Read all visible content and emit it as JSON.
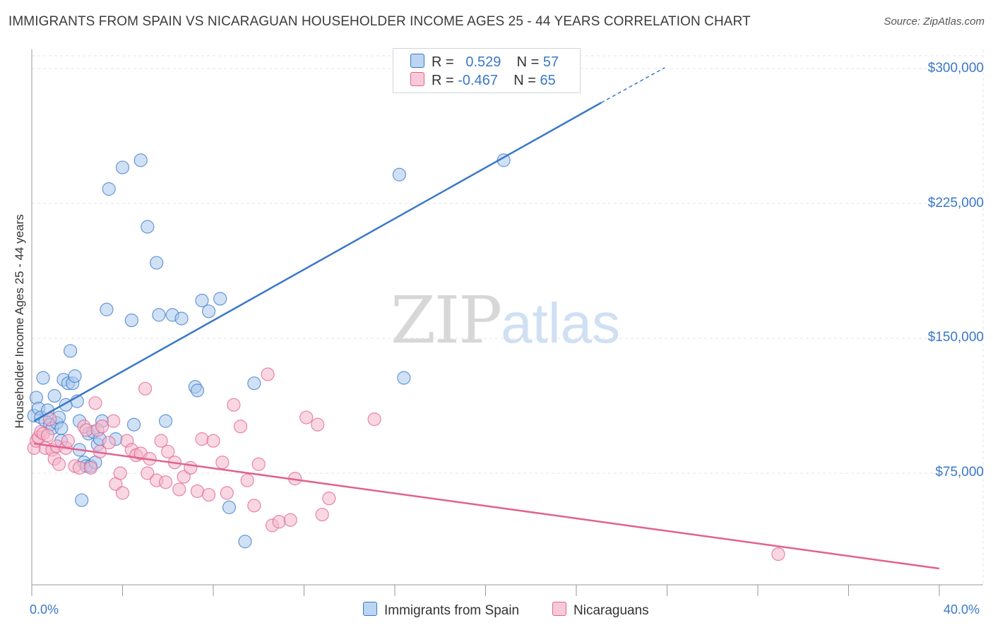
{
  "title": "IMMIGRANTS FROM SPAIN VS NICARAGUAN HOUSEHOLDER INCOME AGES 25 - 44 YEARS CORRELATION CHART",
  "source": "Source: ZipAtlas.com",
  "watermark": {
    "zip": "ZIP",
    "atlas": "atlas"
  },
  "legend": {
    "blue": {
      "r_label": "R =",
      "r_value": "0.529",
      "n_label": "N =",
      "n_value": "57"
    },
    "pink": {
      "r_label": "R =",
      "r_value": "-0.467",
      "n_label": "N =",
      "n_value": "65"
    }
  },
  "colors": {
    "blue": "#3a78c8",
    "blue_fill": "#a9c8ef",
    "pink": "#e0628f",
    "pink_fill": "#f4b6cb",
    "grid": "#dfe3e8"
  },
  "chart_data": {
    "type": "scatter",
    "title": "IMMIGRANTS FROM SPAIN VS NICARAGUAN HOUSEHOLDER INCOME AGES 25 - 44 YEARS CORRELATION CHART",
    "xlabel": "",
    "ylabel": "Householder Income Ages 25 - 44 years",
    "xlim": [
      0,
      40
    ],
    "ylim": [
      10000,
      310000
    ],
    "x_tick_labels": [
      "0.0%",
      "40.0%"
    ],
    "y_ticks": [
      75000,
      150000,
      225000,
      300000
    ],
    "y_tick_labels": [
      "$75,000",
      "$150,000",
      "$225,000",
      "$300,000"
    ],
    "grid": true,
    "legend_position": "top-center",
    "series": [
      {
        "name": "Immigrants from Spain",
        "color": "#3a78c8",
        "trend": {
          "x0": 0.1,
          "y0": 104000,
          "x1": 25.1,
          "y1": 281000,
          "dash_to_x": 27.9,
          "dash_to_y": 300500
        },
        "points": [
          [
            0.1,
            107000
          ],
          [
            0.2,
            117000
          ],
          [
            0.3,
            111000
          ],
          [
            0.4,
            106000
          ],
          [
            0.5,
            128000
          ],
          [
            0.6,
            104000
          ],
          [
            0.7,
            110000
          ],
          [
            0.8,
            102000
          ],
          [
            0.9,
            100000
          ],
          [
            1.0,
            118000
          ],
          [
            1.1,
            103000
          ],
          [
            1.2,
            106000
          ],
          [
            1.3,
            100000
          ],
          [
            1.4,
            127000
          ],
          [
            1.5,
            113000
          ],
          [
            1.6,
            125000
          ],
          [
            1.7,
            143000
          ],
          [
            1.8,
            125000
          ],
          [
            1.9,
            129000
          ],
          [
            2.0,
            115000
          ],
          [
            2.1,
            104000
          ],
          [
            2.2,
            60000
          ],
          [
            2.3,
            81000
          ],
          [
            2.4,
            79000
          ],
          [
            2.5,
            97000
          ],
          [
            2.6,
            79000
          ],
          [
            2.1,
            88000
          ],
          [
            1.3,
            93000
          ],
          [
            2.7,
            98000
          ],
          [
            2.8,
            81000
          ],
          [
            2.9,
            91000
          ],
          [
            3.0,
            94000
          ],
          [
            3.1,
            104000
          ],
          [
            3.3,
            166000
          ],
          [
            3.4,
            233000
          ],
          [
            3.7,
            94000
          ],
          [
            4.0,
            245000
          ],
          [
            4.4,
            160000
          ],
          [
            4.5,
            102000
          ],
          [
            4.8,
            249000
          ],
          [
            5.1,
            212000
          ],
          [
            5.5,
            192000
          ],
          [
            5.6,
            163000
          ],
          [
            5.9,
            104000
          ],
          [
            6.2,
            163000
          ],
          [
            6.6,
            161000
          ],
          [
            7.2,
            123000
          ],
          [
            7.3,
            121000
          ],
          [
            7.5,
            171000
          ],
          [
            7.8,
            165000
          ],
          [
            8.3,
            172000
          ],
          [
            8.7,
            56000
          ],
          [
            9.4,
            37000
          ],
          [
            9.8,
            125000
          ],
          [
            16.2,
            241000
          ],
          [
            16.4,
            128000
          ],
          [
            20.8,
            249000
          ]
        ]
      },
      {
        "name": "Nicaraguans",
        "color": "#e0628f",
        "trend": {
          "x0": 0.1,
          "y0": 91500,
          "x1": 40,
          "y1": 22000
        },
        "points": [
          [
            0.1,
            89000
          ],
          [
            0.2,
            93000
          ],
          [
            0.3,
            95000
          ],
          [
            0.4,
            98000
          ],
          [
            0.5,
            97000
          ],
          [
            0.6,
            89000
          ],
          [
            0.7,
            96000
          ],
          [
            0.8,
            105000
          ],
          [
            0.9,
            88000
          ],
          [
            1.0,
            83000
          ],
          [
            1.1,
            90000
          ],
          [
            1.2,
            80000
          ],
          [
            1.5,
            89000
          ],
          [
            1.6,
            93000
          ],
          [
            1.9,
            79000
          ],
          [
            2.1,
            78000
          ],
          [
            2.3,
            101000
          ],
          [
            2.4,
            99000
          ],
          [
            2.6,
            78000
          ],
          [
            2.8,
            114000
          ],
          [
            2.9,
            99000
          ],
          [
            3.0,
            87000
          ],
          [
            3.1,
            101000
          ],
          [
            3.4,
            92000
          ],
          [
            3.6,
            104000
          ],
          [
            3.7,
            69000
          ],
          [
            3.9,
            75000
          ],
          [
            4.0,
            64000
          ],
          [
            4.2,
            93000
          ],
          [
            4.4,
            88000
          ],
          [
            4.6,
            85000
          ],
          [
            4.8,
            86000
          ],
          [
            5.0,
            122000
          ],
          [
            5.1,
            75000
          ],
          [
            5.2,
            83000
          ],
          [
            5.5,
            71000
          ],
          [
            5.7,
            93000
          ],
          [
            5.9,
            70000
          ],
          [
            6.0,
            87000
          ],
          [
            6.3,
            81000
          ],
          [
            6.5,
            66000
          ],
          [
            6.7,
            73000
          ],
          [
            7.0,
            78000
          ],
          [
            7.3,
            65000
          ],
          [
            7.5,
            94000
          ],
          [
            7.8,
            63000
          ],
          [
            8.0,
            93000
          ],
          [
            8.4,
            81000
          ],
          [
            8.6,
            64000
          ],
          [
            8.9,
            113000
          ],
          [
            9.2,
            101000
          ],
          [
            9.5,
            71000
          ],
          [
            9.8,
            57000
          ],
          [
            10.0,
            80000
          ],
          [
            10.4,
            130000
          ],
          [
            10.6,
            46000
          ],
          [
            10.9,
            48000
          ],
          [
            11.4,
            49000
          ],
          [
            11.6,
            72000
          ],
          [
            12.1,
            106000
          ],
          [
            12.6,
            102000
          ],
          [
            13.1,
            61000
          ],
          [
            15.1,
            105000
          ],
          [
            12.8,
            52000
          ],
          [
            32.9,
            30000
          ]
        ]
      }
    ]
  },
  "bottom_legend": {
    "blue_label": "Immigrants from Spain",
    "pink_label": "Nicaraguans"
  }
}
